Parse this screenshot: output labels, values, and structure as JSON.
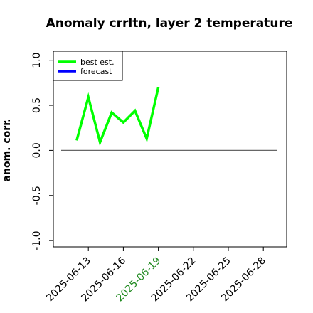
{
  "chart_data": {
    "type": "line",
    "title": "Anomaly crrltn, layer 2 temperature",
    "ylabel": "anom. corr.",
    "x": [
      "2025-06-12",
      "2025-06-13",
      "2025-06-14",
      "2025-06-15",
      "2025-06-16",
      "2025-06-17",
      "2025-06-18",
      "2025-06-19"
    ],
    "series": [
      {
        "name": "best est.",
        "color": "#00ff00",
        "values": [
          0.11,
          0.59,
          0.09,
          0.42,
          0.31,
          0.44,
          0.13,
          0.7
        ]
      },
      {
        "name": "forecast",
        "color": "#0000ff",
        "values": [
          null,
          null,
          null,
          null,
          null,
          null,
          null,
          null
        ]
      }
    ],
    "xlim": [
      "2025-06-10",
      "2025-06-30"
    ],
    "xticks": [
      "2025-06-13",
      "2025-06-16",
      "2025-06-19",
      "2025-06-22",
      "2025-06-25",
      "2025-06-28"
    ],
    "highlighted_xtick": 2,
    "highlight_color": "#228b22",
    "ylim": [
      -1.07,
      1.1
    ],
    "yticks": [
      {
        "value": -1,
        "label": "-1.0"
      },
      {
        "value": -0.5,
        "label": "-0.5"
      },
      {
        "value": 0,
        "label": "0.0"
      },
      {
        "value": 0.5,
        "label": "0.5"
      },
      {
        "value": 1,
        "label": "1.0"
      }
    ],
    "hline": 0,
    "legend": "upper left"
  }
}
